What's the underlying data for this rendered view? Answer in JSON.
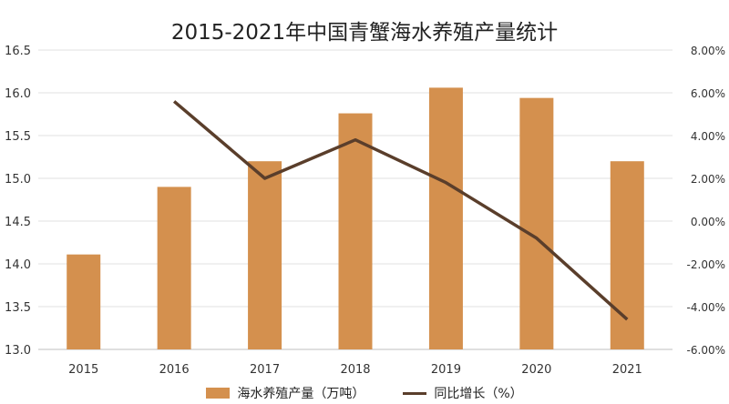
{
  "chart_data": {
    "type": "bar",
    "title": "2015-2021年中国青蟹海水养殖产量统计",
    "categories": [
      "2015",
      "2016",
      "2017",
      "2018",
      "2019",
      "2020",
      "2021"
    ],
    "series": [
      {
        "name": "海水养殖产量（万吨）",
        "kind": "bar",
        "axis": "left",
        "color": "#d4904e",
        "values": [
          14.11,
          14.9,
          15.2,
          15.76,
          16.06,
          15.94,
          15.2
        ]
      },
      {
        "name": "同比增长（%）",
        "kind": "line",
        "axis": "right",
        "color": "#5a3e2b",
        "values": [
          null,
          5.6,
          2.0,
          3.8,
          1.8,
          -0.8,
          -4.6
        ]
      }
    ],
    "y_left": {
      "min": 13.0,
      "max": 16.5,
      "ticks": [
        "13.0",
        "13.5",
        "14.0",
        "14.5",
        "15.0",
        "15.5",
        "16.0",
        "16.5"
      ]
    },
    "y_right": {
      "min": -6,
      "max": 8,
      "ticks": [
        "-6.00%",
        "-4.00%",
        "-2.00%",
        "0.00%",
        "2.00%",
        "4.00%",
        "6.00%",
        "8.00%"
      ]
    },
    "grid": true,
    "legend": "bottom"
  }
}
